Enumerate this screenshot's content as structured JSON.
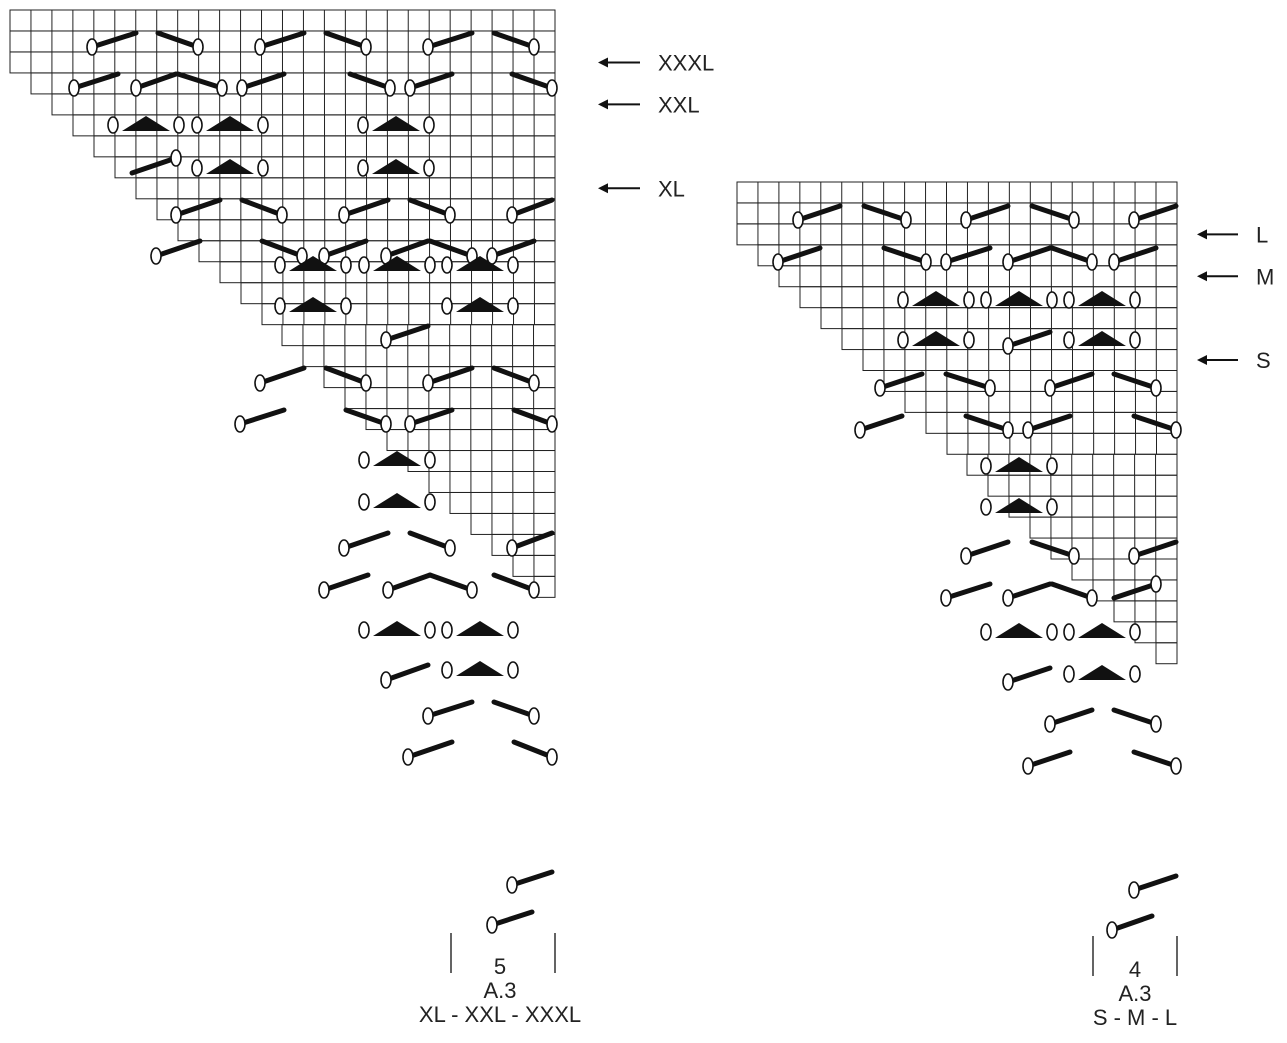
{
  "charts": [
    {
      "id": "chart-large",
      "repeat_count": "5",
      "name": "A.3",
      "sizes": "XL - XXL - XXXL",
      "size_markers": [
        {
          "label": "XXXL",
          "row": 3
        },
        {
          "label": "XXL",
          "row": 5
        },
        {
          "label": "XL",
          "row": 9
        }
      ]
    },
    {
      "id": "chart-small",
      "repeat_count": "4",
      "name": "A.3",
      "sizes": "S - M - L",
      "size_markers": [
        {
          "label": "L",
          "row": 3
        },
        {
          "label": "M",
          "row": 5
        },
        {
          "label": "S",
          "row": 9
        }
      ]
    }
  ],
  "colors": {
    "grid": "#222222",
    "symbol": "#111111"
  }
}
